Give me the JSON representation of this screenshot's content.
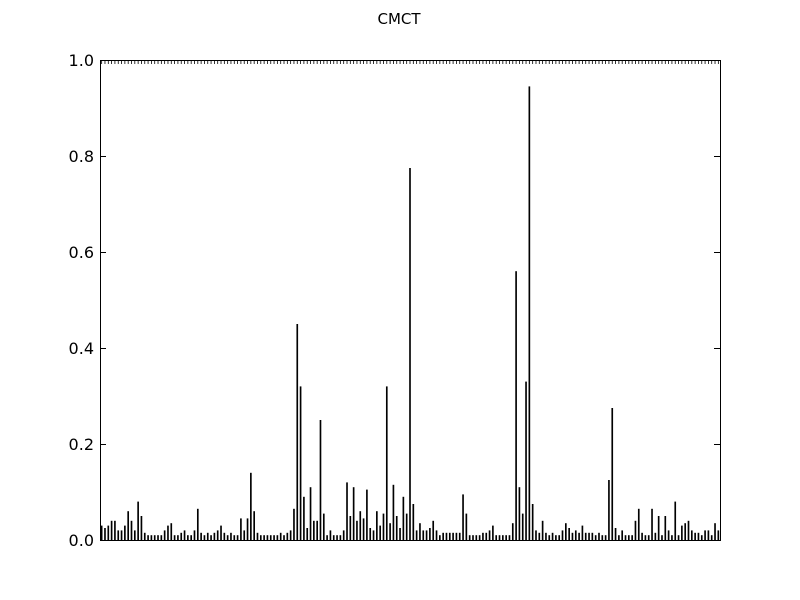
{
  "chart_data": {
    "type": "bar",
    "title": "CMCT",
    "xlabel": "",
    "ylabel": "",
    "ylim": [
      0,
      1.0
    ],
    "yticks": [
      "0.0",
      "0.2",
      "0.4",
      "0.6",
      "0.8",
      "1.0"
    ],
    "grid": false,
    "bar_color": "#000000",
    "values": [
      0.03,
      0.025,
      0.03,
      0.04,
      0.04,
      0.02,
      0.02,
      0.03,
      0.06,
      0.04,
      0.02,
      0.08,
      0.05,
      0.015,
      0.01,
      0.01,
      0.01,
      0.01,
      0.01,
      0.02,
      0.03,
      0.035,
      0.01,
      0.01,
      0.015,
      0.02,
      0.01,
      0.01,
      0.02,
      0.065,
      0.015,
      0.01,
      0.015,
      0.01,
      0.015,
      0.02,
      0.03,
      0.015,
      0.01,
      0.015,
      0.01,
      0.01,
      0.045,
      0.02,
      0.045,
      0.14,
      0.06,
      0.015,
      0.01,
      0.01,
      0.01,
      0.01,
      0.01,
      0.01,
      0.015,
      0.01,
      0.015,
      0.02,
      0.065,
      0.45,
      0.32,
      0.09,
      0.025,
      0.11,
      0.04,
      0.04,
      0.25,
      0.055,
      0.01,
      0.02,
      0.01,
      0.01,
      0.01,
      0.02,
      0.12,
      0.05,
      0.11,
      0.04,
      0.06,
      0.045,
      0.105,
      0.025,
      0.02,
      0.06,
      0.03,
      0.055,
      0.32,
      0.035,
      0.115,
      0.05,
      0.025,
      0.09,
      0.055,
      0.775,
      0.075,
      0.02,
      0.035,
      0.02,
      0.02,
      0.025,
      0.04,
      0.02,
      0.01,
      0.015,
      0.015,
      0.015,
      0.015,
      0.015,
      0.015,
      0.095,
      0.055,
      0.01,
      0.01,
      0.01,
      0.01,
      0.015,
      0.015,
      0.02,
      0.03,
      0.01,
      0.01,
      0.01,
      0.01,
      0.01,
      0.035,
      0.56,
      0.11,
      0.055,
      0.33,
      0.945,
      0.075,
      0.02,
      0.015,
      0.04,
      0.015,
      0.01,
      0.015,
      0.01,
      0.01,
      0.02,
      0.035,
      0.025,
      0.015,
      0.02,
      0.015,
      0.03,
      0.015,
      0.015,
      0.015,
      0.01,
      0.015,
      0.01,
      0.01,
      0.125,
      0.275,
      0.025,
      0.01,
      0.02,
      0.01,
      0.01,
      0.01,
      0.04,
      0.065,
      0.015,
      0.01,
      0.01,
      0.065,
      0.015,
      0.05,
      0.01,
      0.05,
      0.02,
      0.01,
      0.08,
      0.01,
      0.03,
      0.035,
      0.04,
      0.02,
      0.015,
      0.015,
      0.01,
      0.02,
      0.02,
      0.01,
      0.035,
      0.02
    ]
  }
}
